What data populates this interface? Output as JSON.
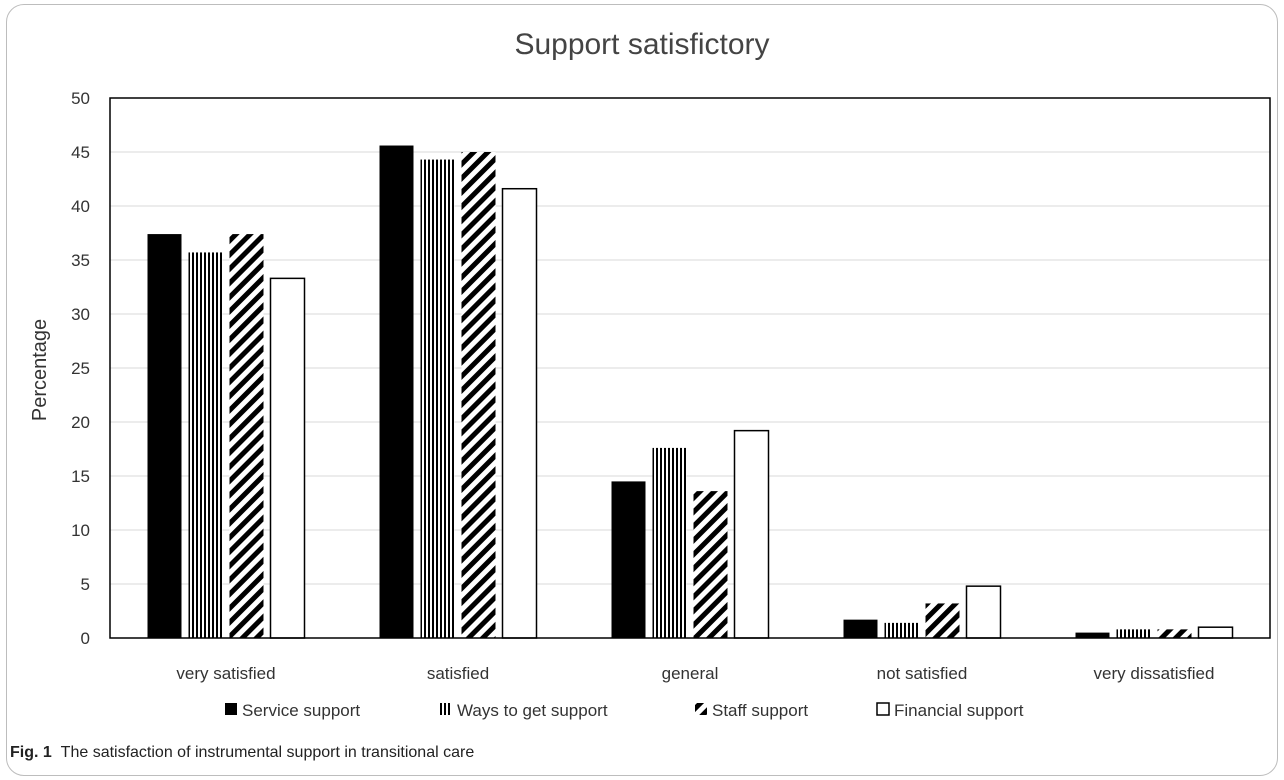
{
  "chart_data": {
    "type": "bar",
    "title": "Support satisfictory",
    "xlabel": "",
    "ylabel": "Percentage",
    "ylim": [
      0,
      50
    ],
    "yticks": [
      0,
      5,
      10,
      15,
      20,
      25,
      30,
      35,
      40,
      45,
      50
    ],
    "grid": true,
    "legend_position": "bottom",
    "categories": [
      "very satisfied",
      "satisfied",
      "general",
      "not satisfied",
      "very dissatisfied"
    ],
    "series": [
      {
        "name": "Service support",
        "pattern": "solid",
        "color": "#000000",
        "values": [
          37.4,
          45.6,
          14.5,
          1.7,
          0.5
        ]
      },
      {
        "name": "Ways to get support",
        "pattern": "vertical-lines",
        "color": "#000000",
        "values": [
          35.7,
          44.3,
          17.6,
          1.4,
          0.8
        ]
      },
      {
        "name": "Staff support",
        "pattern": "diagonal-stripes",
        "color": "#000000",
        "values": [
          37.4,
          45.0,
          13.6,
          3.2,
          0.8
        ]
      },
      {
        "name": "Financial support",
        "pattern": "outline",
        "color": "#ffffff",
        "values": [
          33.3,
          41.6,
          19.2,
          4.8,
          1.0
        ]
      }
    ]
  },
  "caption": {
    "label": "Fig. 1",
    "text": "The satisfaction of instrumental support in transitional care"
  }
}
